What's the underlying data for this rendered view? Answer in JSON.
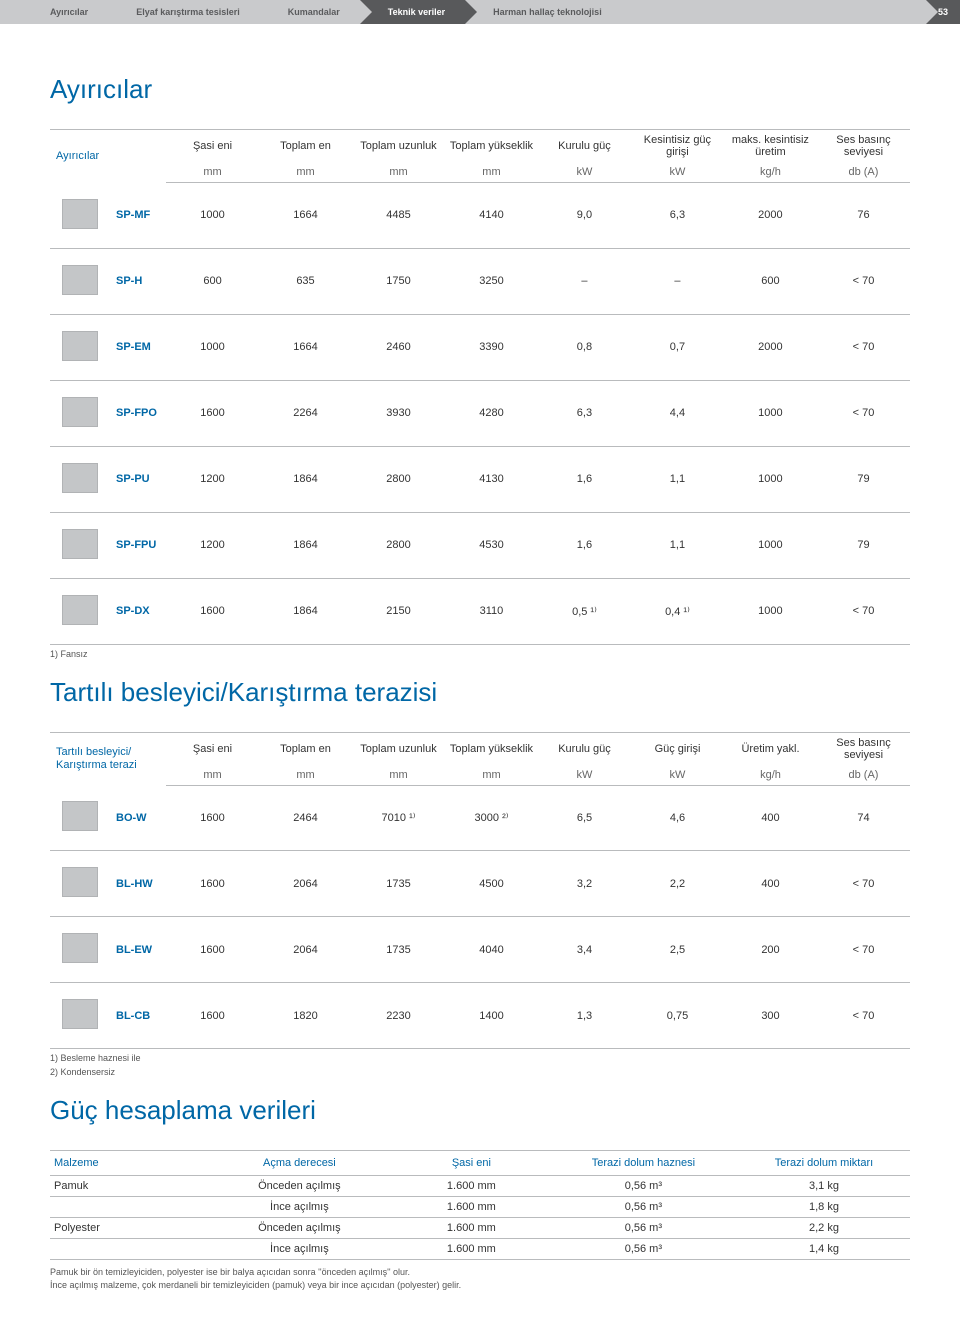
{
  "tabs": {
    "items": [
      "Ayırıcılar",
      "Elyaf karıştırma tesisleri",
      "Kumandalar",
      "Teknik veriler",
      "Harman hallaç teknolojisi"
    ],
    "active_index": 3,
    "page_number": "53"
  },
  "section1": {
    "title": "Ayırıcılar",
    "corner": "Ayırıcılar",
    "headers": [
      "Şasi eni",
      "Toplam en",
      "Toplam uzunluk",
      "Toplam yükseklik",
      "Kurulu güç",
      "Kesintisiz güç girişi",
      "maks. kesintisiz üretim",
      "Ses basınç seviyesi"
    ],
    "units": [
      "mm",
      "mm",
      "mm",
      "mm",
      "kW",
      "kW",
      "kg/h",
      "db (A)"
    ],
    "rows": [
      {
        "label": "SP-MF",
        "cells": [
          "1000",
          "1664",
          "4485",
          "4140",
          "9,0",
          "6,3",
          "2000",
          "76"
        ]
      },
      {
        "label": "SP-H",
        "cells": [
          "600",
          "635",
          "1750",
          "3250",
          "–",
          "–",
          "600",
          "< 70"
        ]
      },
      {
        "label": "SP-EM",
        "cells": [
          "1000",
          "1664",
          "2460",
          "3390",
          "0,8",
          "0,7",
          "2000",
          "< 70"
        ]
      },
      {
        "label": "SP-FPO",
        "cells": [
          "1600",
          "2264",
          "3930",
          "4280",
          "6,3",
          "4,4",
          "1000",
          "< 70"
        ]
      },
      {
        "label": "SP-PU",
        "cells": [
          "1200",
          "1864",
          "2800",
          "4130",
          "1,6",
          "1,1",
          "1000",
          "79"
        ]
      },
      {
        "label": "SP-FPU",
        "cells": [
          "1200",
          "1864",
          "2800",
          "4530",
          "1,6",
          "1,1",
          "1000",
          "79"
        ]
      },
      {
        "label": "SP-DX",
        "cells": [
          "1600",
          "1864",
          "2150",
          "3110",
          "0,5 ¹⁾",
          "0,4 ¹⁾",
          "1000",
          "< 70"
        ]
      }
    ],
    "footnote": "1) Fansız"
  },
  "section2": {
    "title": "Tartılı besleyici/Karıştırma terazisi",
    "corner": "Tartılı besleyici/\nKarıştırma terazi",
    "headers": [
      "Şasi eni",
      "Toplam en",
      "Toplam uzunluk",
      "Toplam yükseklik",
      "Kurulu güç",
      "Güç girişi",
      "Üretim yakl.",
      "Ses basınç seviyesi"
    ],
    "units": [
      "mm",
      "mm",
      "mm",
      "mm",
      "kW",
      "kW",
      "kg/h",
      "db (A)"
    ],
    "rows": [
      {
        "label": "BO-W",
        "cells": [
          "1600",
          "2464",
          "7010 ¹⁾",
          "3000 ²⁾",
          "6,5",
          "4,6",
          "400",
          "74"
        ]
      },
      {
        "label": "BL-HW",
        "cells": [
          "1600",
          "2064",
          "1735",
          "4500",
          "3,2",
          "2,2",
          "400",
          "< 70"
        ]
      },
      {
        "label": "BL-EW",
        "cells": [
          "1600",
          "2064",
          "1735",
          "4040",
          "3,4",
          "2,5",
          "200",
          "< 70"
        ]
      },
      {
        "label": "BL-CB",
        "cells": [
          "1600",
          "1820",
          "2230",
          "1400",
          "1,3",
          "0,75",
          "300",
          "< 70"
        ]
      }
    ],
    "footnotes": [
      "1) Besleme haznesi ile",
      "2) Kondensersiz"
    ]
  },
  "section3": {
    "title": "Güç hesaplama verileri",
    "headers": [
      "Malzeme",
      "Açma derecesi",
      "Şasi eni",
      "Terazi dolum haznesi",
      "Terazi dolum miktarı"
    ],
    "rows": [
      [
        "Pamuk",
        "Önceden açılmış",
        "1.600 mm",
        "0,56 m³",
        "3,1 kg"
      ],
      [
        "",
        "İnce açılmış",
        "1.600 mm",
        "0,56 m³",
        "1,8 kg"
      ],
      [
        "Polyester",
        "Önceden açılmış",
        "1.600 mm",
        "0,56 m³",
        "2,2 kg"
      ],
      [
        "",
        "İnce açılmış",
        "1.600 mm",
        "0,56 m³",
        "1,4 kg"
      ]
    ],
    "notes": [
      "Pamuk bir ön temizleyiciden, polyester ise bir balya açıcıdan sonra ''önceden açılmış'' olur.",
      "İnce açılmış malzeme, çok merdaneli bir temizleyiciden (pamuk) veya bir ince açıcıdan (polyester) gelir."
    ]
  },
  "colors": {
    "brand_blue": "#0067a6",
    "tab_light": "#c9cacc",
    "tab_dark": "#58595b",
    "rule": "#b9bbbd",
    "icon_fill": "#c4c6c8"
  }
}
